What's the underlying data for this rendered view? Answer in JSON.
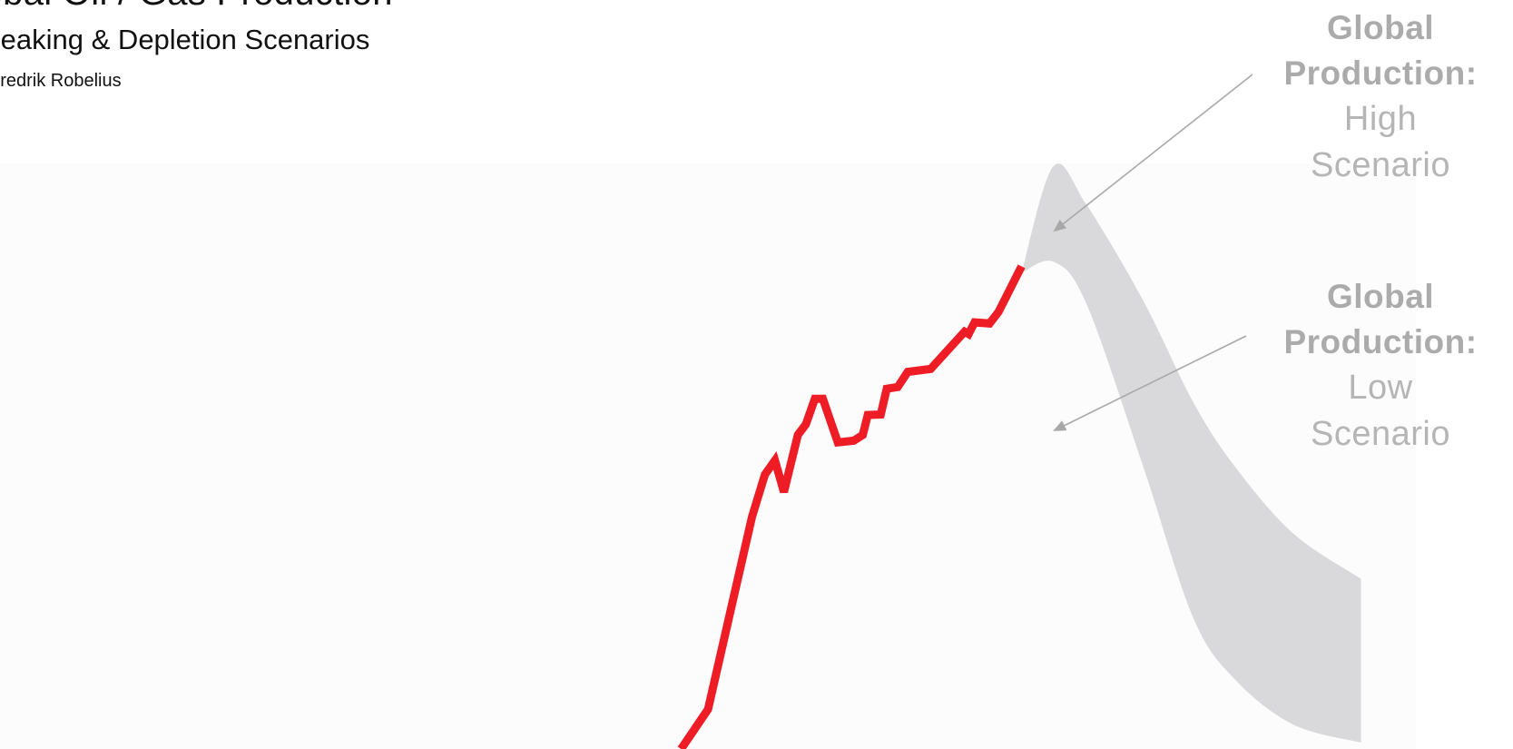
{
  "header": {
    "title": "Global Oil / Gas Production",
    "subtitle": "Peaking & Depletion Scenarios",
    "author": "Fredrik Robelius"
  },
  "annotations": {
    "high": {
      "bold_lines": [
        "Global",
        "Production:"
      ],
      "light_lines": [
        "High",
        "Scenario"
      ]
    },
    "low": {
      "bold_lines": [
        "Global",
        "Production:"
      ],
      "light_lines": [
        "Low",
        "Scenario"
      ]
    }
  },
  "colors": {
    "historical": "#ee1c25",
    "scenario_band": "#d9d9db",
    "plot_background": "#fcfcfc",
    "annotation_text": "#b3b3b3",
    "arrow": "#a8a8a8"
  },
  "chart_data": {
    "type": "area",
    "grid": false,
    "legend": "none",
    "xlim": [
      0,
      100
    ],
    "ylim": [
      0,
      100
    ],
    "series": [
      {
        "name": "",
        "kind": "historical-line",
        "x": [
          26.4,
          29.1,
          33.5,
          34.8,
          35.8,
          36.7,
          38.1,
          38.9,
          39.8,
          40.6,
          42.1,
          43.7,
          44.6,
          45.1,
          46.4,
          47.0,
          48.1,
          49.1,
          51.4,
          54.8,
          55.2,
          55.8,
          57.3,
          58.2,
          60.5
        ],
        "y": [
          0,
          6.8,
          39.8,
          47.1,
          49.5,
          44.1,
          53.9,
          55.7,
          60.1,
          60.1,
          52.6,
          52.9,
          53.9,
          57.3,
          57.4,
          61.8,
          62.1,
          64.7,
          65.2,
          71.6,
          71.2,
          73.2,
          73.0,
          75.0,
          82.8
        ]
      },
      {
        "name": "",
        "kind": "scenario-band",
        "x": [
          60.5,
          63.7,
          67.0,
          72.7,
          77.7,
          81.9,
          87.7,
          94.5
        ],
        "upper": [
          81.7,
          100.0,
          93.4,
          76.9,
          59.5,
          48.4,
          37.0,
          29.2
        ],
        "lower": [
          81.7,
          83.6,
          76.4,
          48.4,
          22.5,
          11.9,
          4.2,
          1.1
        ]
      }
    ]
  }
}
